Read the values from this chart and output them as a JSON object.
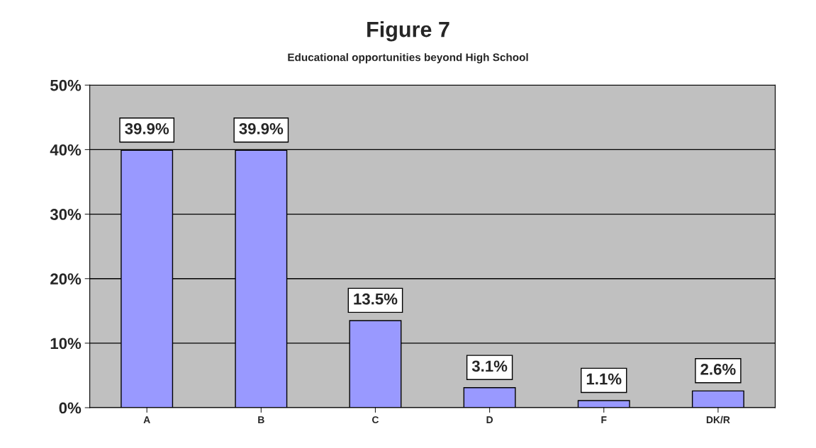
{
  "chart_data": {
    "type": "bar",
    "title": "Figure 7",
    "subtitle": "Educational opportunities beyond High School",
    "categories": [
      "A",
      "B",
      "C",
      "D",
      "F",
      "DK/R"
    ],
    "values": [
      39.9,
      39.9,
      13.5,
      3.1,
      1.1,
      2.6
    ],
    "value_labels": [
      "39.9%",
      "39.9%",
      "13.5%",
      "3.1%",
      "1.1%",
      "2.6%"
    ],
    "color": "#9999ff",
    "ylim": [
      0,
      50
    ],
    "yticks": [
      {
        "value": 0,
        "label": "0%"
      },
      {
        "value": 10,
        "label": "10%"
      },
      {
        "value": 20,
        "label": "20%"
      },
      {
        "value": 30,
        "label": "30%"
      },
      {
        "value": 40,
        "label": "40%"
      },
      {
        "value": 50,
        "label": "50%"
      }
    ],
    "grid": "y"
  }
}
